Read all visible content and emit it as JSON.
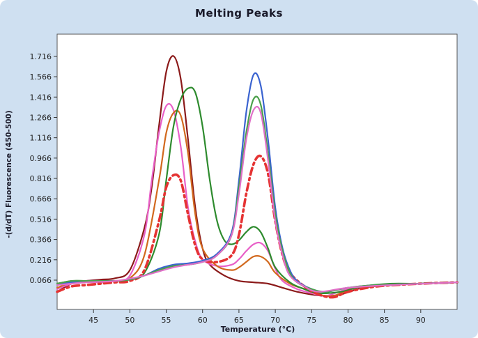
{
  "chart_data": {
    "type": "line",
    "title": "Melting Peaks",
    "xlabel": "Temperature (°C)",
    "ylabel": "-(d/dT) Fluorescence (450-500)",
    "xlim": [
      40,
      95
    ],
    "ylim": [
      -0.15,
      1.88
    ],
    "x_ticks": [
      45,
      50,
      55,
      60,
      65,
      70,
      75,
      80,
      85,
      90
    ],
    "y_ticks": [
      0.066,
      0.216,
      0.366,
      0.516,
      0.666,
      0.816,
      0.966,
      1.116,
      1.266,
      1.416,
      1.566,
      1.716
    ],
    "y_tick_labels": [
      "0.066",
      "0.216",
      "0.366",
      "0.516",
      "0.666",
      "0.816",
      "0.966",
      "1.116",
      "1.266",
      "1.416",
      "1.566",
      "1.716"
    ],
    "grid": false,
    "series": [
      {
        "color": "#8b1a1a",
        "dashed": false,
        "points": [
          [
            40,
            -0.02
          ],
          [
            42,
            0.04
          ],
          [
            44,
            0.06
          ],
          [
            46,
            0.07
          ],
          [
            48,
            0.08
          ],
          [
            50,
            0.14
          ],
          [
            52,
            0.45
          ],
          [
            53,
            0.75
          ],
          [
            54,
            1.2
          ],
          [
            55,
            1.6
          ],
          [
            56,
            1.718
          ],
          [
            57,
            1.55
          ],
          [
            58,
            1.1
          ],
          [
            59,
            0.6
          ],
          [
            60,
            0.3
          ],
          [
            61,
            0.18
          ],
          [
            63,
            0.1
          ],
          [
            65,
            0.06
          ],
          [
            67,
            0.05
          ],
          [
            69,
            0.04
          ],
          [
            71,
            0.01
          ],
          [
            73,
            -0.02
          ],
          [
            75,
            -0.04
          ],
          [
            77,
            -0.05
          ],
          [
            79,
            -0.04
          ],
          [
            82,
            0.01
          ],
          [
            86,
            0.03
          ],
          [
            90,
            0.04
          ],
          [
            95,
            0.05
          ]
        ]
      },
      {
        "color": "#e860c8",
        "dashed": false,
        "points": [
          [
            40,
            0.0
          ],
          [
            42,
            0.04
          ],
          [
            44,
            0.05
          ],
          [
            46,
            0.05
          ],
          [
            48,
            0.06
          ],
          [
            50,
            0.1
          ],
          [
            52,
            0.4
          ],
          [
            53,
            0.8
          ],
          [
            54,
            1.15
          ],
          [
            55,
            1.35
          ],
          [
            56,
            1.32
          ],
          [
            57,
            1.05
          ],
          [
            58,
            0.6
          ],
          [
            59,
            0.35
          ],
          [
            60,
            0.22
          ],
          [
            62,
            0.17
          ],
          [
            64,
            0.18
          ],
          [
            65,
            0.22
          ],
          [
            66,
            0.28
          ],
          [
            67,
            0.33
          ],
          [
            68,
            0.34
          ],
          [
            69,
            0.28
          ],
          [
            70,
            0.15
          ],
          [
            71,
            0.06
          ],
          [
            73,
            0.0
          ],
          [
            75,
            -0.03
          ],
          [
            77,
            -0.05
          ],
          [
            80,
            0.0
          ],
          [
            85,
            0.03
          ],
          [
            90,
            0.04
          ],
          [
            95,
            0.05
          ]
        ]
      },
      {
        "color": "#d2691e",
        "dashed": false,
        "points": [
          [
            40,
            0.01
          ],
          [
            42,
            0.05
          ],
          [
            44,
            0.06
          ],
          [
            46,
            0.06
          ],
          [
            48,
            0.06
          ],
          [
            50,
            0.08
          ],
          [
            52,
            0.25
          ],
          [
            54,
            0.8
          ],
          [
            55,
            1.15
          ],
          [
            56,
            1.3
          ],
          [
            57,
            1.28
          ],
          [
            58,
            1.0
          ],
          [
            59,
            0.55
          ],
          [
            60,
            0.3
          ],
          [
            62,
            0.17
          ],
          [
            64,
            0.14
          ],
          [
            65,
            0.16
          ],
          [
            66,
            0.2
          ],
          [
            67,
            0.24
          ],
          [
            68,
            0.24
          ],
          [
            69,
            0.2
          ],
          [
            70,
            0.12
          ],
          [
            72,
            0.04
          ],
          [
            74,
            0.0
          ],
          [
            76,
            -0.04
          ],
          [
            78,
            -0.05
          ],
          [
            81,
            0.01
          ],
          [
            86,
            0.03
          ],
          [
            90,
            0.04
          ],
          [
            95,
            0.05
          ]
        ]
      },
      {
        "color": "#2e8b2e",
        "dashed": false,
        "points": [
          [
            40,
            0.04
          ],
          [
            42,
            0.06
          ],
          [
            44,
            0.06
          ],
          [
            46,
            0.06
          ],
          [
            48,
            0.06
          ],
          [
            50,
            0.07
          ],
          [
            52,
            0.12
          ],
          [
            54,
            0.4
          ],
          [
            55,
            0.8
          ],
          [
            56,
            1.2
          ],
          [
            57,
            1.4
          ],
          [
            58,
            1.48
          ],
          [
            59,
            1.45
          ],
          [
            60,
            1.2
          ],
          [
            61,
            0.8
          ],
          [
            62,
            0.5
          ],
          [
            63,
            0.36
          ],
          [
            64,
            0.33
          ],
          [
            65,
            0.36
          ],
          [
            66,
            0.42
          ],
          [
            67,
            0.46
          ],
          [
            68,
            0.42
          ],
          [
            69,
            0.3
          ],
          [
            70,
            0.16
          ],
          [
            72,
            0.05
          ],
          [
            74,
            0.0
          ],
          [
            76,
            -0.03
          ],
          [
            79,
            -0.02
          ],
          [
            82,
            0.02
          ],
          [
            86,
            0.04
          ],
          [
            90,
            0.04
          ],
          [
            95,
            0.05
          ]
        ]
      },
      {
        "color": "#e53333",
        "dashed": true,
        "points": [
          [
            40,
            -0.02
          ],
          [
            42,
            0.02
          ],
          [
            44,
            0.03
          ],
          [
            46,
            0.04
          ],
          [
            48,
            0.05
          ],
          [
            50,
            0.06
          ],
          [
            52,
            0.14
          ],
          [
            54,
            0.5
          ],
          [
            55,
            0.75
          ],
          [
            56,
            0.84
          ],
          [
            57,
            0.8
          ],
          [
            58,
            0.55
          ],
          [
            59,
            0.32
          ],
          [
            60,
            0.22
          ],
          [
            62,
            0.2
          ],
          [
            64,
            0.25
          ],
          [
            65,
            0.4
          ],
          [
            66,
            0.7
          ],
          [
            67,
            0.92
          ],
          [
            68,
            0.98
          ],
          [
            69,
            0.85
          ],
          [
            70,
            0.5
          ],
          [
            71,
            0.25
          ],
          [
            72,
            0.12
          ],
          [
            74,
            0.02
          ],
          [
            76,
            -0.04
          ],
          [
            78,
            -0.06
          ],
          [
            80,
            -0.02
          ],
          [
            84,
            0.02
          ],
          [
            90,
            0.04
          ],
          [
            95,
            0.05
          ]
        ]
      },
      {
        "color": "#3a63d0",
        "dashed": false,
        "points": [
          [
            40,
            0.03
          ],
          [
            42,
            0.05
          ],
          [
            44,
            0.06
          ],
          [
            46,
            0.06
          ],
          [
            48,
            0.06
          ],
          [
            50,
            0.07
          ],
          [
            52,
            0.1
          ],
          [
            54,
            0.15
          ],
          [
            56,
            0.18
          ],
          [
            58,
            0.19
          ],
          [
            60,
            0.21
          ],
          [
            62,
            0.26
          ],
          [
            64,
            0.42
          ],
          [
            65,
            0.8
          ],
          [
            66,
            1.3
          ],
          [
            67,
            1.58
          ],
          [
            68,
            1.5
          ],
          [
            69,
            1.1
          ],
          [
            70,
            0.6
          ],
          [
            71,
            0.3
          ],
          [
            72,
            0.14
          ],
          [
            73,
            0.06
          ],
          [
            75,
            0.0
          ],
          [
            77,
            -0.02
          ],
          [
            80,
            0.01
          ],
          [
            84,
            0.03
          ],
          [
            90,
            0.04
          ],
          [
            95,
            0.05
          ]
        ]
      },
      {
        "color": "#4aa04a",
        "dashed": false,
        "points": [
          [
            40,
            0.04
          ],
          [
            42,
            0.06
          ],
          [
            44,
            0.06
          ],
          [
            46,
            0.06
          ],
          [
            48,
            0.06
          ],
          [
            50,
            0.07
          ],
          [
            52,
            0.1
          ],
          [
            54,
            0.14
          ],
          [
            56,
            0.17
          ],
          [
            58,
            0.18
          ],
          [
            60,
            0.2
          ],
          [
            62,
            0.25
          ],
          [
            64,
            0.4
          ],
          [
            65,
            0.75
          ],
          [
            66,
            1.15
          ],
          [
            67,
            1.4
          ],
          [
            68,
            1.36
          ],
          [
            69,
            1.0
          ],
          [
            70,
            0.55
          ],
          [
            71,
            0.28
          ],
          [
            72,
            0.12
          ],
          [
            73,
            0.05
          ],
          [
            75,
            0.0
          ],
          [
            77,
            -0.02
          ],
          [
            80,
            0.01
          ],
          [
            84,
            0.03
          ],
          [
            90,
            0.04
          ],
          [
            95,
            0.05
          ]
        ]
      },
      {
        "color": "#e070c8",
        "dashed": false,
        "points": [
          [
            40,
            0.03
          ],
          [
            44,
            0.05
          ],
          [
            48,
            0.06
          ],
          [
            52,
            0.1
          ],
          [
            56,
            0.16
          ],
          [
            60,
            0.2
          ],
          [
            62,
            0.25
          ],
          [
            64,
            0.4
          ],
          [
            65,
            0.7
          ],
          [
            66,
            1.1
          ],
          [
            67,
            1.32
          ],
          [
            68,
            1.3
          ],
          [
            69,
            0.95
          ],
          [
            70,
            0.5
          ],
          [
            71,
            0.25
          ],
          [
            72,
            0.1
          ],
          [
            74,
            0.02
          ],
          [
            76,
            -0.02
          ],
          [
            80,
            0.01
          ],
          [
            86,
            0.03
          ],
          [
            95,
            0.05
          ]
        ]
      }
    ]
  }
}
